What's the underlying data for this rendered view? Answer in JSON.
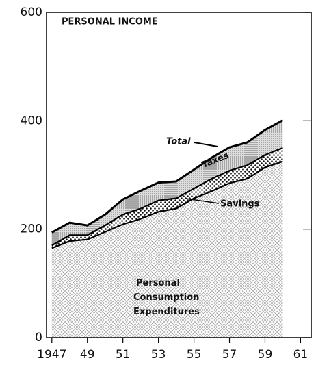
{
  "chart_data": {
    "type": "stacked_area",
    "title": "PERSONAL INCOME",
    "total_label": "Total",
    "x": [
      1947,
      1948,
      1949,
      1950,
      1951,
      1952,
      1953,
      1954,
      1955,
      1956,
      1957,
      1958,
      1959,
      1960
    ],
    "series": [
      {
        "name": "Personal Consumption Expenditures",
        "color": "#000000",
        "values": [
          165,
          178,
          181,
          195,
          209,
          219,
          232,
          238,
          257,
          270,
          285,
          293,
          314,
          325
        ]
      },
      {
        "name": "Savings",
        "color": "#000000",
        "values": [
          5,
          11,
          8,
          12,
          18,
          19,
          21,
          19,
          18,
          23,
          23,
          25,
          23,
          25
        ]
      },
      {
        "name": "Taxes",
        "color": "#000000",
        "values": [
          24,
          23,
          18,
          20,
          28,
          33,
          33,
          31,
          35,
          39,
          43,
          42,
          46,
          51
        ]
      }
    ],
    "xlim": [
      1946.7,
      1961.6
    ],
    "xticks": [
      {
        "value": 1947,
        "label": "1947"
      },
      {
        "value": 1949,
        "label": "49"
      },
      {
        "value": 1951,
        "label": "51"
      },
      {
        "value": 1953,
        "label": "53"
      },
      {
        "value": 1955,
        "label": "55"
      },
      {
        "value": 1957,
        "label": "57"
      },
      {
        "value": 1959,
        "label": "59"
      },
      {
        "value": 1961,
        "label": "61"
      }
    ],
    "ylim": [
      0,
      600
    ],
    "yticks": [
      0,
      200,
      400,
      600
    ]
  }
}
